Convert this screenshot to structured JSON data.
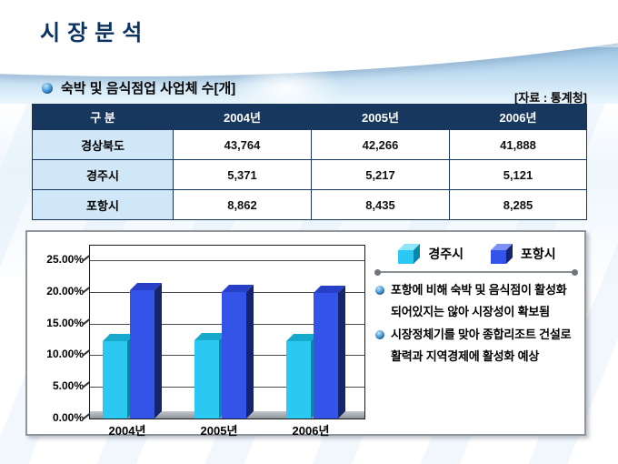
{
  "slide": {
    "title": "시장분석"
  },
  "section": {
    "label": "숙박 및 음식점업 사업체 수[개]",
    "source": "[자료 : 통계청]"
  },
  "theme": {
    "navy": "#17375E",
    "row_label_bg": "#CFE7F7",
    "title_color": "#0D3361",
    "sky_blue": "#BFDCF1",
    "box_border_gray": "#8F959B"
  },
  "table": {
    "headers": [
      "구  분",
      "2004년",
      "2005년",
      "2006년"
    ],
    "rows": [
      {
        "label": "경상북도",
        "values": [
          "43,764",
          "42,266",
          "41,888"
        ]
      },
      {
        "label": "경주시",
        "values": [
          "5,371",
          "5,217",
          "5,121"
        ]
      },
      {
        "label": "포항시",
        "values": [
          "8,862",
          "8,435",
          "8,285"
        ]
      }
    ]
  },
  "chart_data": {
    "type": "bar",
    "title": "",
    "categories": [
      "2004년",
      "2005년",
      "2006년"
    ],
    "series": [
      {
        "name": "경주시",
        "values": [
          12.27,
          12.34,
          12.23
        ],
        "colors": {
          "front": "#2BC9F2",
          "top": "#17A9CC",
          "side": "#0C85AC",
          "light": "#8FE5FA"
        }
      },
      {
        "name": "포항시",
        "values": [
          20.25,
          19.96,
          19.78
        ],
        "colors": {
          "front": "#3453E8",
          "top": "#2840C8",
          "side": "#16246E",
          "light": "#7D90F5"
        }
      }
    ],
    "unit": "percent",
    "yticks": [
      "25.00%",
      "20.00%",
      "15.00%",
      "10.00%",
      "5.00%",
      "0.00%"
    ],
    "ylim": [
      0,
      25
    ],
    "grid": true,
    "legend": [
      "경주시",
      "포항시"
    ],
    "legend_position": "top-right",
    "style": "3d-column"
  },
  "notes": {
    "bullets": [
      "포항에 비해 숙박 및 음식점이 활성화 되어있지는 않아 시장성이 확보됨",
      "시장정체기를 맞아 종합리조트 건설로 활력과 지역경제에 활성화 예상"
    ]
  }
}
